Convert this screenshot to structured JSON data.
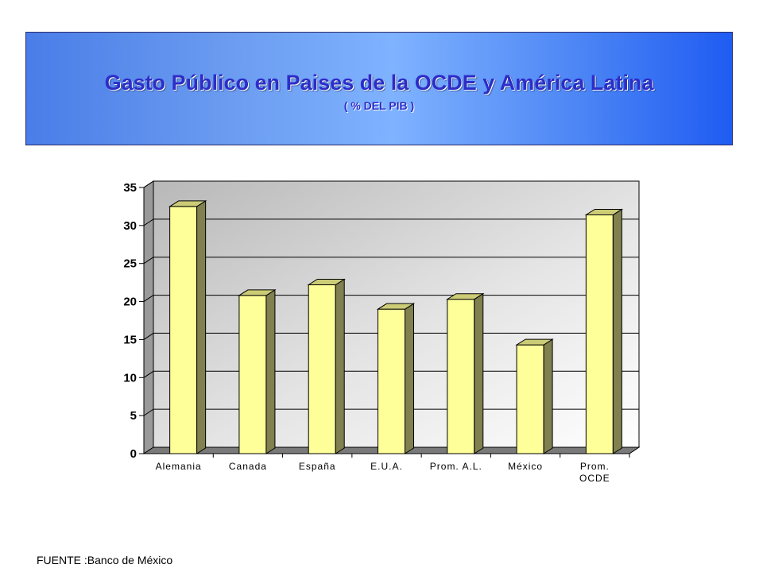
{
  "header": {
    "title": "Gasto Público en Paises de la OCDE y América Latina",
    "subtitle": "( % DEL PIB )"
  },
  "source": "FUENTE :Banco de  México",
  "colors": {
    "bar_front": "#ffff99",
    "bar_side": "#808050",
    "bar_top": "#cccc77",
    "banner_dark": "#1f5cf2",
    "banner_light": "#7fb2ff",
    "title_text": "#2d2dc8"
  },
  "chart_data": {
    "type": "bar",
    "style": "3d",
    "categories": [
      "Alemania",
      "Canada",
      "España",
      "E.U.A.",
      "Prom. A.L.",
      "México",
      "Prom. OCDE"
    ],
    "category_lines": [
      [
        "Alemania"
      ],
      [
        "Canada"
      ],
      [
        "España"
      ],
      [
        "E.U.A."
      ],
      [
        "Prom. A.L."
      ],
      [
        "México"
      ],
      [
        "Prom.",
        "OCDE"
      ]
    ],
    "values": [
      32.5,
      20.8,
      22.2,
      19.0,
      20.3,
      14.3,
      31.4
    ],
    "ylim": [
      0,
      35
    ],
    "yticks": [
      0,
      5,
      10,
      15,
      20,
      25,
      30,
      35
    ],
    "grid": true,
    "xlabel": "",
    "ylabel": "",
    "title": ""
  }
}
